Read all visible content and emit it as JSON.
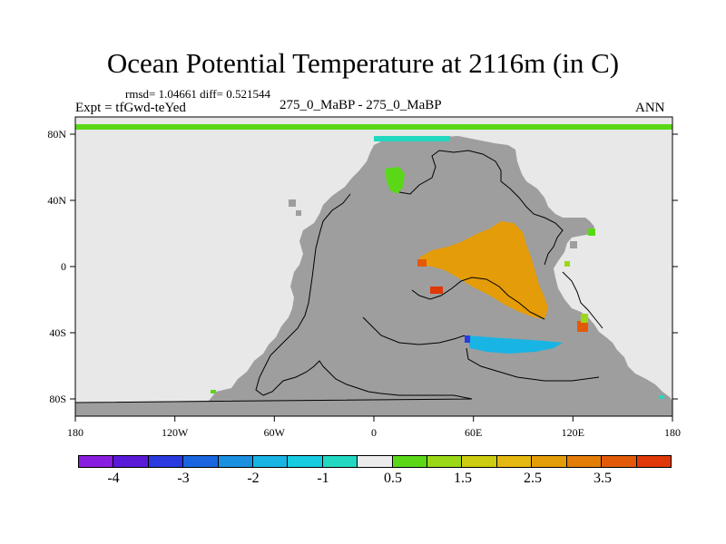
{
  "title": "Ocean Potential Temperature at 2116m (in C)",
  "stats": "rmsd= 1.04661  diff= 0.521544",
  "expt_label": "Expt = tfGwd-teYed",
  "center_label": "275_0_MaBP - 275_0_MaBP",
  "season": "ANN",
  "axes": {
    "x_ticks": [
      "180",
      "120W",
      "60W",
      "0",
      "60E",
      "120E",
      "180"
    ],
    "y_ticks": [
      "80N",
      "40N",
      "0",
      "40S",
      "80S"
    ]
  },
  "colors": {
    "land": "#9e9e9e",
    "ocean_neutral": "#e8e8e8",
    "frame": "#000000"
  },
  "colorbar": {
    "colors": [
      "#8a1ee0",
      "#5a1ad8",
      "#2a3ae0",
      "#1a66e0",
      "#1a90e0",
      "#18b4e4",
      "#18cce0",
      "#22d8c0",
      "#ececec",
      "#5ad818",
      "#9ad818",
      "#cccc10",
      "#e4b810",
      "#e49c08",
      "#e47c08",
      "#e25a08",
      "#e03808"
    ],
    "labels": [
      "-4",
      "-3",
      "-2",
      "-1",
      "0.5",
      "1.5",
      "2.5",
      "3.5"
    ]
  }
}
